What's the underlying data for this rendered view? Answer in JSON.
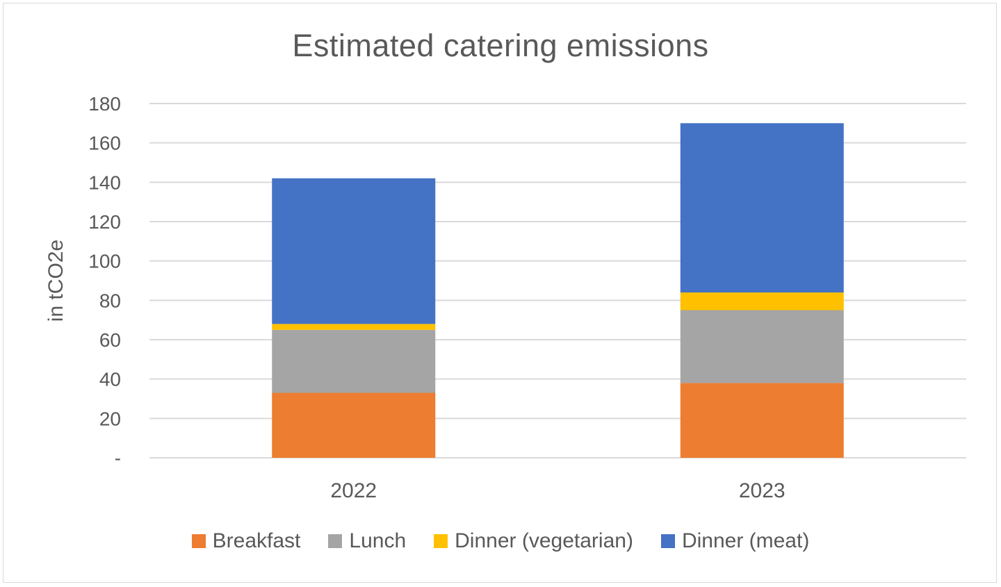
{
  "chart_data": {
    "type": "bar",
    "stacked": true,
    "title": "Estimated catering emissions",
    "xlabel": "",
    "ylabel": "in tCO2e",
    "categories": [
      "2022",
      "2023"
    ],
    "ylim": [
      0,
      180
    ],
    "yticks": [
      {
        "value": 0,
        "label": "-"
      },
      {
        "value": 20,
        "label": "20"
      },
      {
        "value": 40,
        "label": "40"
      },
      {
        "value": 60,
        "label": "60"
      },
      {
        "value": 80,
        "label": "80"
      },
      {
        "value": 100,
        "label": "100"
      },
      {
        "value": 120,
        "label": "120"
      },
      {
        "value": 140,
        "label": "140"
      },
      {
        "value": 160,
        "label": "160"
      },
      {
        "value": 180,
        "label": "180"
      }
    ],
    "grid": true,
    "legend_position": "bottom",
    "series": [
      {
        "name": "Breakfast",
        "color": "#ED7D31",
        "values": [
          33,
          38
        ]
      },
      {
        "name": "Lunch",
        "color": "#A5A5A5",
        "values": [
          32,
          37
        ]
      },
      {
        "name": "Dinner (vegetarian)",
        "color": "#FFC000",
        "values": [
          3,
          9
        ]
      },
      {
        "name": "Dinner (meat)",
        "color": "#4472C4",
        "values": [
          74,
          86
        ]
      }
    ]
  }
}
